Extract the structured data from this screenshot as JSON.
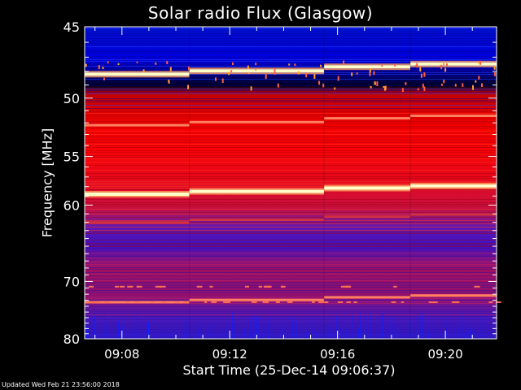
{
  "chart_data": {
    "type": "heatmap",
    "title": "Solar radio Flux (Glasgow)",
    "xlabel": "Start Time (25-Dec-14 09:06:37)",
    "ylabel": "Frequency [MHz]",
    "footer": "Updated Wed Feb 21 23:56:00 2018",
    "x_start_time": "09:06:37",
    "x_tick_labels": [
      "09:08",
      "09:12",
      "09:16",
      "09:20"
    ],
    "x_tick_minutes": [
      8,
      12,
      16,
      20
    ],
    "xlim_minutes": [
      6.617,
      21.9
    ],
    "y_tick_labels": [
      "45",
      "50",
      "55",
      "60",
      "70",
      "80"
    ],
    "y_tick_values": [
      45,
      50,
      55,
      60,
      70,
      80
    ],
    "ylim": [
      45,
      80
    ],
    "y_scale": "reciprocal",
    "segment_boundaries_minutes": [
      10.5,
      15.5,
      18.7
    ],
    "emission_bands_mhz": [
      {
        "freq": 48.2,
        "level": "saturated"
      },
      {
        "freq": 52.2,
        "level": "high"
      },
      {
        "freq": 58.8,
        "level": "saturated"
      },
      {
        "freq": 62.0,
        "level": "medium"
      },
      {
        "freq": 73.3,
        "level": "high"
      }
    ],
    "colormap": [
      "#000010",
      "#0000d8",
      "#5010c8",
      "#c01050",
      "#ff0000",
      "#ff8040",
      "#ffffc0"
    ]
  }
}
